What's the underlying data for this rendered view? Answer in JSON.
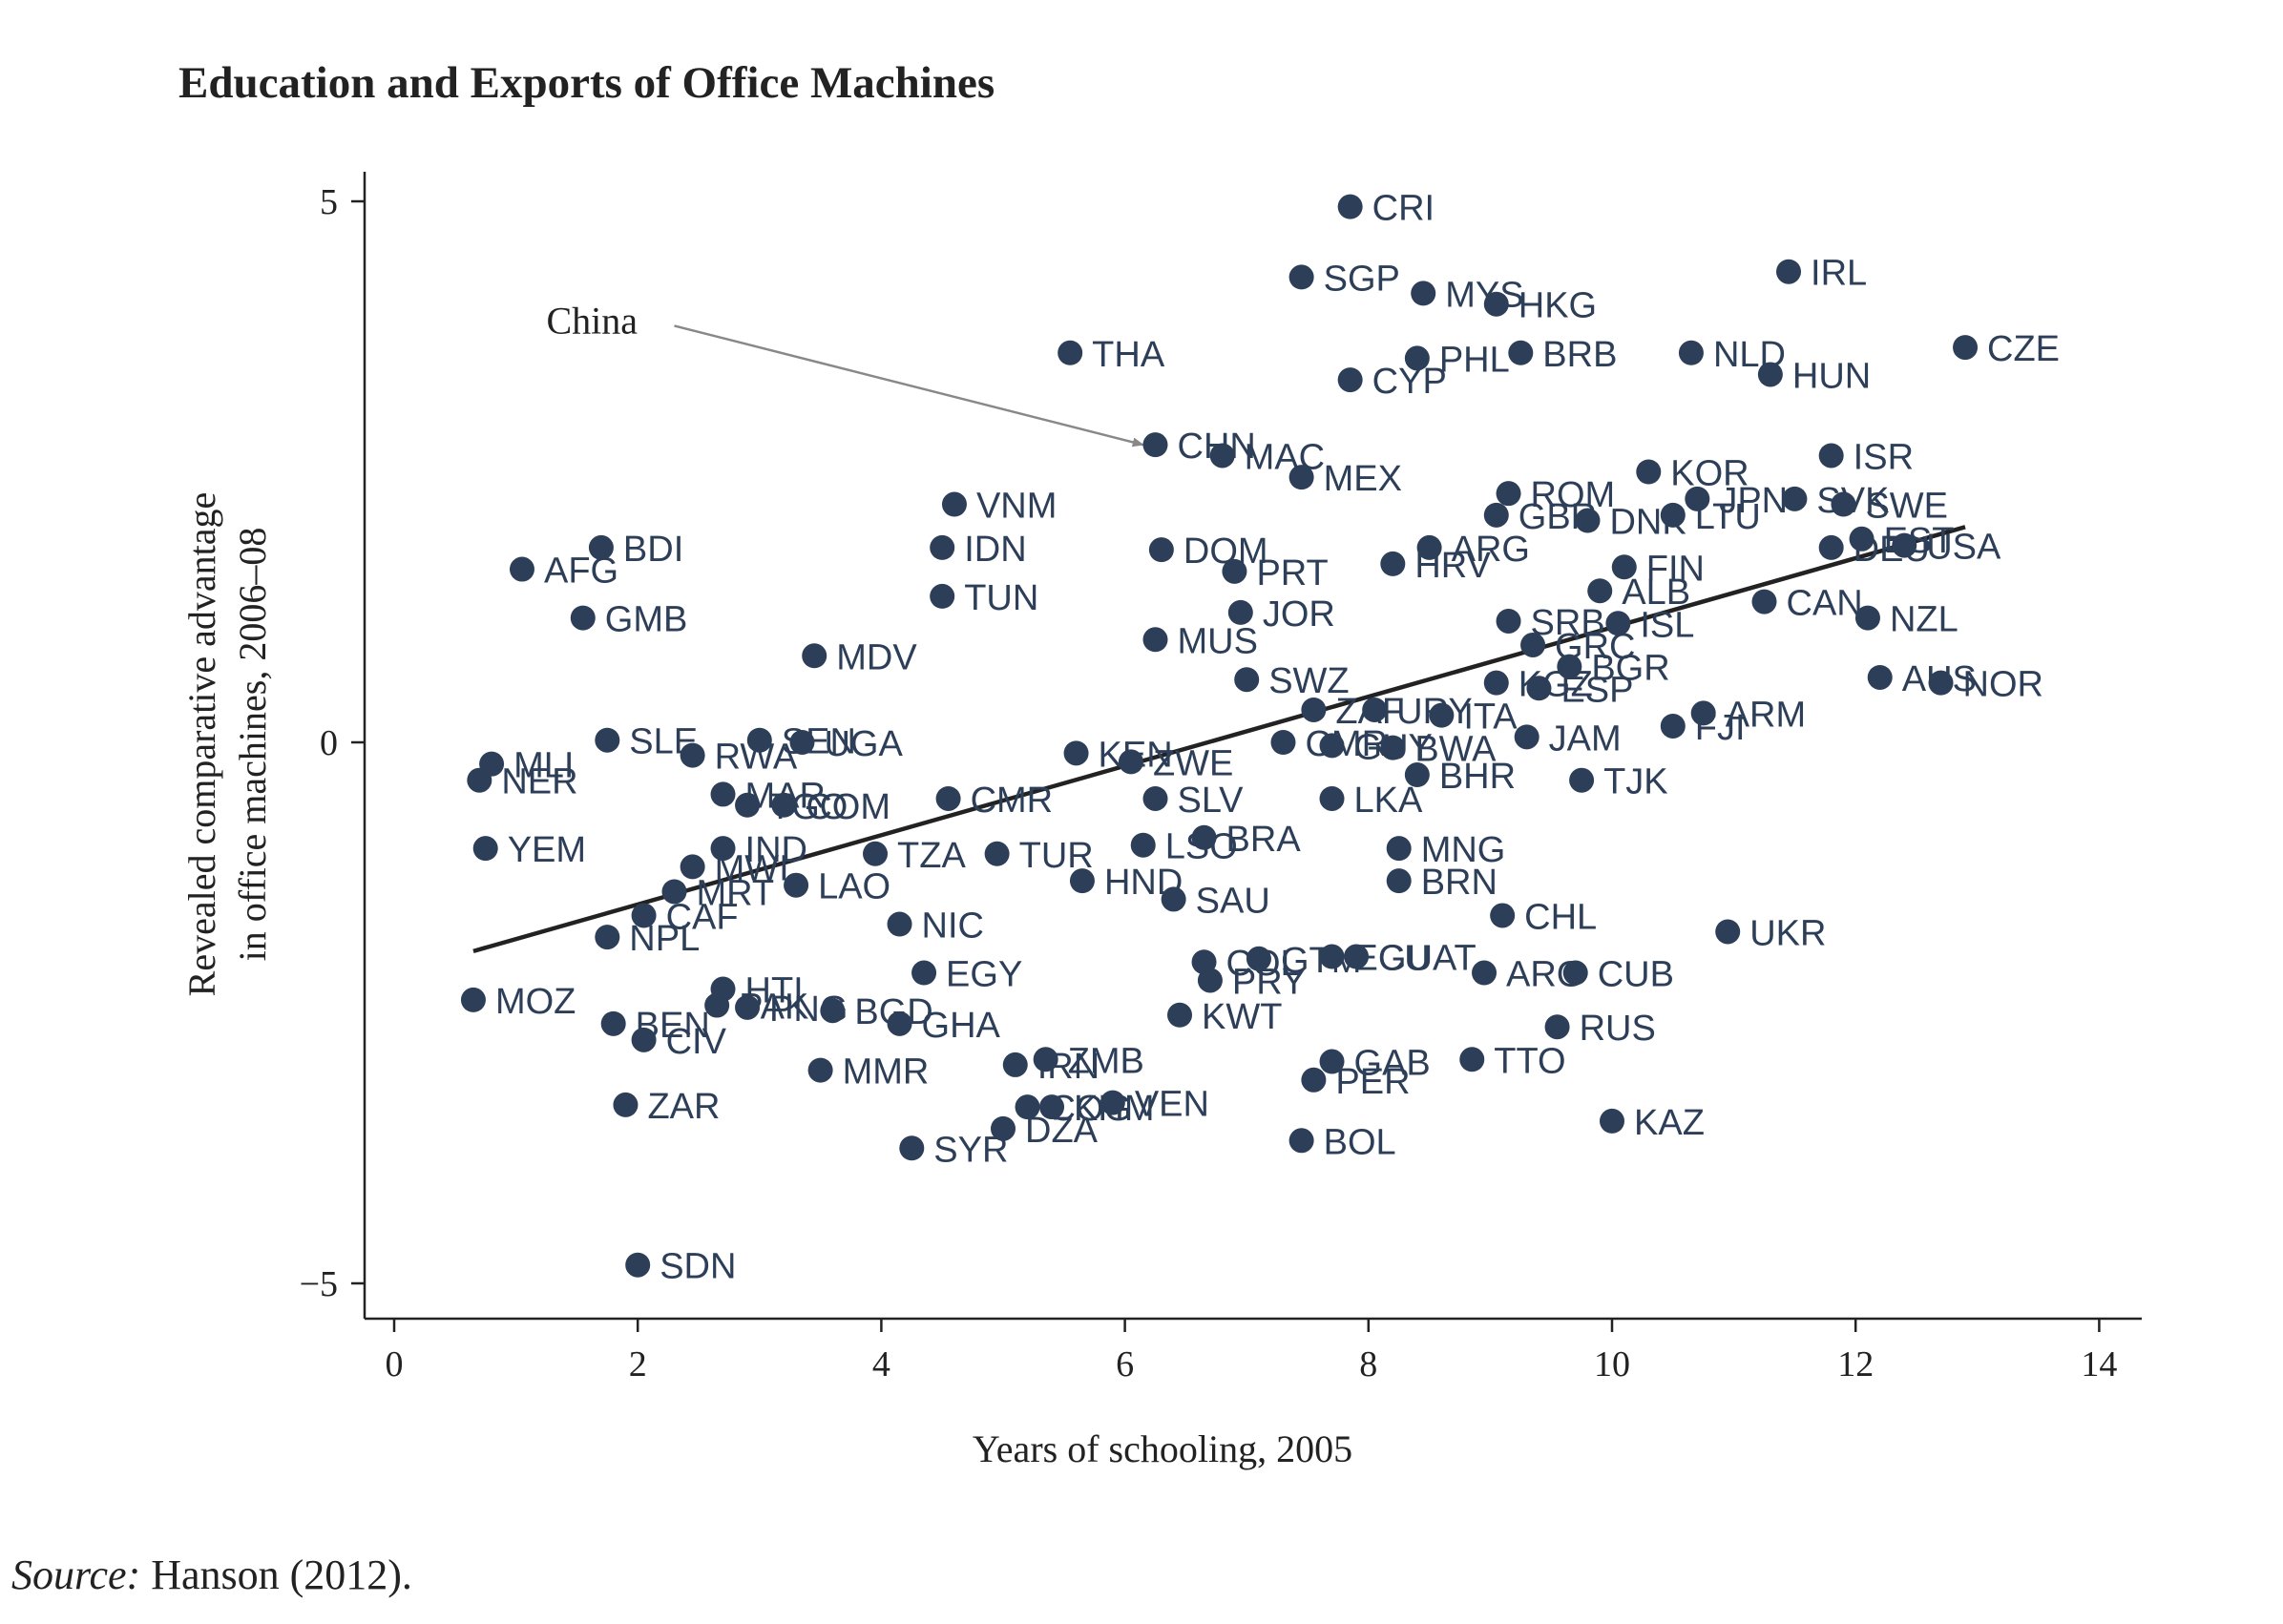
{
  "chart_data": {
    "type": "scatter",
    "title": "Education and Exports of Office Machines",
    "xlabel": "Years of schooling, 2005",
    "ylabel_line1": "Revealed comparative advantage",
    "ylabel_line2": "in office machines, 2006–08",
    "xlim": [
      -0.25,
      14.25
    ],
    "ylim": [
      -5.3,
      5.3
    ],
    "xticks": [
      0,
      2,
      4,
      6,
      8,
      10,
      12,
      14
    ],
    "yticks": [
      5,
      0,
      -5
    ],
    "ytick_labels": [
      "5",
      "0",
      "−5"
    ],
    "point_color": "#2c3e58",
    "fit_line": {
      "x": [
        0.65,
        12.9
      ],
      "y": [
        -1.93,
        1.99
      ]
    },
    "annotation": {
      "text": "China",
      "label_x": 1.25,
      "label_y": 3.9,
      "arrow_from": [
        2.3,
        3.85
      ],
      "arrow_to": [
        6.15,
        2.75
      ]
    },
    "points": [
      {
        "label": "CRI",
        "x": 7.85,
        "y": 4.95
      },
      {
        "label": "IRL",
        "x": 11.45,
        "y": 4.35
      },
      {
        "label": "SGP",
        "x": 7.45,
        "y": 4.3
      },
      {
        "label": "MYS",
        "x": 8.45,
        "y": 4.15
      },
      {
        "label": "HKG",
        "x": 9.05,
        "y": 4.05
      },
      {
        "label": "THA",
        "x": 5.55,
        "y": 3.6
      },
      {
        "label": "PHL",
        "x": 8.4,
        "y": 3.55
      },
      {
        "label": "BRB",
        "x": 9.25,
        "y": 3.6
      },
      {
        "label": "NLD",
        "x": 10.65,
        "y": 3.6
      },
      {
        "label": "CZE",
        "x": 12.9,
        "y": 3.65
      },
      {
        "label": "HUN",
        "x": 11.3,
        "y": 3.4
      },
      {
        "label": "CYP",
        "x": 7.85,
        "y": 3.35
      },
      {
        "label": "CHN",
        "x": 6.25,
        "y": 2.75
      },
      {
        "label": "MAC",
        "x": 6.8,
        "y": 2.65
      },
      {
        "label": "ISR",
        "x": 11.8,
        "y": 2.65
      },
      {
        "label": "MEX",
        "x": 7.45,
        "y": 2.45
      },
      {
        "label": "KOR",
        "x": 10.3,
        "y": 2.5
      },
      {
        "label": "ROM",
        "x": 9.15,
        "y": 2.3
      },
      {
        "label": "SVK",
        "x": 11.5,
        "y": 2.25
      },
      {
        "label": "SWE",
        "x": 11.9,
        "y": 2.2
      },
      {
        "label": "JPN",
        "x": 10.7,
        "y": 2.25
      },
      {
        "label": "VNM",
        "x": 4.6,
        "y": 2.2
      },
      {
        "label": "LTU",
        "x": 10.5,
        "y": 2.1
      },
      {
        "label": "GBR",
        "x": 9.05,
        "y": 2.1
      },
      {
        "label": "DNK",
        "x": 9.8,
        "y": 2.05
      },
      {
        "label": "BDI",
        "x": 1.7,
        "y": 1.8
      },
      {
        "label": "IDN",
        "x": 4.5,
        "y": 1.8
      },
      {
        "label": "DOM",
        "x": 6.3,
        "y": 1.78
      },
      {
        "label": "ARG",
        "x": 8.5,
        "y": 1.8
      },
      {
        "label": "HRV",
        "x": 8.2,
        "y": 1.65
      },
      {
        "label": "EST",
        "x": 12.05,
        "y": 1.88
      },
      {
        "label": "USA",
        "x": 12.4,
        "y": 1.82
      },
      {
        "label": "DEU",
        "x": 11.8,
        "y": 1.8
      },
      {
        "label": "AFG",
        "x": 1.05,
        "y": 1.6
      },
      {
        "label": "PRT",
        "x": 6.9,
        "y": 1.58
      },
      {
        "label": "FIN",
        "x": 10.1,
        "y": 1.62
      },
      {
        "label": "TUN",
        "x": 4.5,
        "y": 1.35
      },
      {
        "label": "ALB",
        "x": 9.9,
        "y": 1.4
      },
      {
        "label": "CAN",
        "x": 11.25,
        "y": 1.3
      },
      {
        "label": "GMB",
        "x": 1.55,
        "y": 1.15
      },
      {
        "label": "JOR",
        "x": 6.95,
        "y": 1.2
      },
      {
        "label": "SRB",
        "x": 9.15,
        "y": 1.12
      },
      {
        "label": "ISL",
        "x": 10.05,
        "y": 1.1
      },
      {
        "label": "NZL",
        "x": 12.1,
        "y": 1.15
      },
      {
        "label": "MUS",
        "x": 6.25,
        "y": 0.95
      },
      {
        "label": "GRC",
        "x": 9.35,
        "y": 0.9
      },
      {
        "label": "MDV",
        "x": 3.45,
        "y": 0.8
      },
      {
        "label": "BGR",
        "x": 9.65,
        "y": 0.7
      },
      {
        "label": "SWZ",
        "x": 7.0,
        "y": 0.58
      },
      {
        "label": "KGZ",
        "x": 9.05,
        "y": 0.55
      },
      {
        "label": "ESP",
        "x": 9.4,
        "y": 0.5
      },
      {
        "label": "AUS",
        "x": 12.2,
        "y": 0.6
      },
      {
        "label": "NOR",
        "x": 12.7,
        "y": 0.55
      },
      {
        "label": "ZAF",
        "x": 7.55,
        "y": 0.3
      },
      {
        "label": "URY",
        "x": 8.05,
        "y": 0.3
      },
      {
        "label": "ITA",
        "x": 8.6,
        "y": 0.25
      },
      {
        "label": "ARM",
        "x": 10.75,
        "y": 0.27
      },
      {
        "label": "FJI",
        "x": 10.5,
        "y": 0.15
      },
      {
        "label": "SLE",
        "x": 1.75,
        "y": 0.02
      },
      {
        "label": "SEN",
        "x": 3.0,
        "y": 0.02
      },
      {
        "label": "UGA",
        "x": 3.35,
        "y": 0.0
      },
      {
        "label": "JAM",
        "x": 9.3,
        "y": 0.05
      },
      {
        "label": "CMR",
        "x": 7.3,
        "y": 0.0
      },
      {
        "label": "BWA",
        "x": 8.2,
        "y": -0.05
      },
      {
        "label": "GUY",
        "x": 7.7,
        "y": -0.03
      },
      {
        "label": "MLI",
        "x": 0.8,
        "y": -0.2
      },
      {
        "label": "RWA",
        "x": 2.45,
        "y": -0.12
      },
      {
        "label": "KEN",
        "x": 5.6,
        "y": -0.1
      },
      {
        "label": "ZWE",
        "x": 6.05,
        "y": -0.18
      },
      {
        "label": "NER",
        "x": 0.7,
        "y": -0.35
      },
      {
        "label": "BHR",
        "x": 8.4,
        "y": -0.3
      },
      {
        "label": "TJK",
        "x": 9.75,
        "y": -0.35
      },
      {
        "label": "MAR",
        "x": 2.7,
        "y": -0.48
      },
      {
        "label": "TGO",
        "x": 2.9,
        "y": -0.58
      },
      {
        "label": "COM",
        "x": 3.2,
        "y": -0.58
      },
      {
        "label": "CMR",
        "x": 4.55,
        "y": -0.52
      },
      {
        "label": "SLV",
        "x": 6.25,
        "y": -0.52
      },
      {
        "label": "LKA",
        "x": 7.7,
        "y": -0.52
      },
      {
        "label": "BRA",
        "x": 6.65,
        "y": -0.88
      },
      {
        "label": "YEM",
        "x": 0.75,
        "y": -0.98
      },
      {
        "label": "IND",
        "x": 2.7,
        "y": -0.98
      },
      {
        "label": "TZA",
        "x": 3.95,
        "y": -1.03
      },
      {
        "label": "TUR",
        "x": 4.95,
        "y": -1.03
      },
      {
        "label": "LSO",
        "x": 6.15,
        "y": -0.95
      },
      {
        "label": "MNG",
        "x": 8.25,
        "y": -0.98
      },
      {
        "label": "MWI",
        "x": 2.45,
        "y": -1.15
      },
      {
        "label": "MRT",
        "x": 2.3,
        "y": -1.38
      },
      {
        "label": "LAO",
        "x": 3.3,
        "y": -1.32
      },
      {
        "label": "HND",
        "x": 5.65,
        "y": -1.28
      },
      {
        "label": "SAU",
        "x": 6.4,
        "y": -1.45
      },
      {
        "label": "BRN",
        "x": 8.25,
        "y": -1.28
      },
      {
        "label": "CAF",
        "x": 2.05,
        "y": -1.6
      },
      {
        "label": "CHL",
        "x": 9.1,
        "y": -1.6
      },
      {
        "label": "NIC",
        "x": 4.15,
        "y": -1.68
      },
      {
        "label": "NPL",
        "x": 1.75,
        "y": -1.8
      },
      {
        "label": "UKR",
        "x": 10.95,
        "y": -1.75
      },
      {
        "label": "ECU",
        "x": 7.7,
        "y": -1.98
      },
      {
        "label": "GTM",
        "x": 7.1,
        "y": -2.0
      },
      {
        "label": "COL",
        "x": 6.65,
        "y": -2.03
      },
      {
        "label": "GUAT",
        "x": 7.9,
        "y": -1.98
      },
      {
        "label": "PRY",
        "x": 6.7,
        "y": -2.2
      },
      {
        "label": "EGY",
        "x": 4.35,
        "y": -2.13
      },
      {
        "label": "ARG",
        "x": 8.95,
        "y": -2.13
      },
      {
        "label": "CUB",
        "x": 9.7,
        "y": -2.13
      },
      {
        "label": "MOZ",
        "x": 0.65,
        "y": -2.38
      },
      {
        "label": "HTI",
        "x": 2.7,
        "y": -2.28
      },
      {
        "label": "PAK",
        "x": 2.65,
        "y": -2.43
      },
      {
        "label": "PNG",
        "x": 2.9,
        "y": -2.45
      },
      {
        "label": "BGD",
        "x": 3.6,
        "y": -2.48
      },
      {
        "label": "KWT",
        "x": 6.45,
        "y": -2.52
      },
      {
        "label": "BEN",
        "x": 1.8,
        "y": -2.6
      },
      {
        "label": "GHA",
        "x": 4.15,
        "y": -2.6
      },
      {
        "label": "RUS",
        "x": 9.55,
        "y": -2.63
      },
      {
        "label": "CIV",
        "x": 2.05,
        "y": -2.75
      },
      {
        "label": "MMR",
        "x": 3.5,
        "y": -3.03
      },
      {
        "label": "IRN",
        "x": 5.1,
        "y": -2.98
      },
      {
        "label": "ZMB",
        "x": 5.35,
        "y": -2.93
      },
      {
        "label": "GAB",
        "x": 7.7,
        "y": -2.95
      },
      {
        "label": "TTO",
        "x": 8.85,
        "y": -2.93
      },
      {
        "label": "PER",
        "x": 7.55,
        "y": -3.12
      },
      {
        "label": "BOL",
        "x": 7.45,
        "y": -3.68
      },
      {
        "label": "ZAR",
        "x": 1.9,
        "y": -3.35
      },
      {
        "label": "COG",
        "x": 5.2,
        "y": -3.37
      },
      {
        "label": "KHM",
        "x": 5.4,
        "y": -3.37
      },
      {
        "label": "VEN",
        "x": 5.9,
        "y": -3.33
      },
      {
        "label": "DZA",
        "x": 5.0,
        "y": -3.57
      },
      {
        "label": "SYR",
        "x": 4.25,
        "y": -3.75
      },
      {
        "label": "KAZ",
        "x": 10.0,
        "y": -3.5
      },
      {
        "label": "SDN",
        "x": 2.0,
        "y": -4.83
      }
    ]
  },
  "source": {
    "prefix": "Source:",
    "text": " Hanson (2012)."
  }
}
